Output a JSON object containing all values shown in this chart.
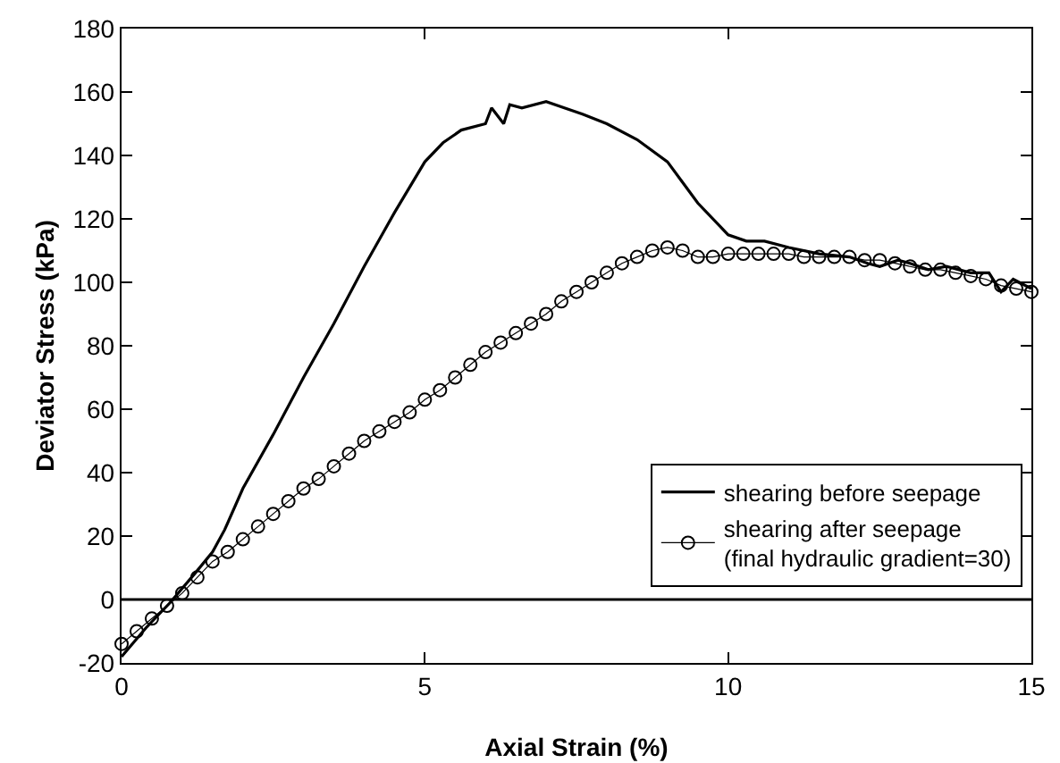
{
  "chart_data": {
    "type": "line",
    "xlabel": "Axial Strain (%)",
    "ylabel": "Deviator Stress (kPa)",
    "xlim": [
      0,
      15
    ],
    "xticks": [
      0,
      5,
      10,
      15
    ],
    "ylim": [
      -20,
      180
    ],
    "yticks": [
      -20,
      0,
      20,
      40,
      60,
      80,
      100,
      120,
      140,
      160,
      180
    ],
    "grid": false,
    "legend": "bottom right",
    "ref_lines": [
      {
        "axis": "y",
        "value": 0,
        "color": "#000000"
      }
    ],
    "series": [
      {
        "name": "shearing before seepage",
        "color": "#000000",
        "marker": "none",
        "line_style": "solid",
        "x": [
          0,
          0.4,
          0.8,
          1.2,
          1.5,
          1.7,
          2,
          2.5,
          3,
          3.5,
          4,
          4.5,
          5,
          5.3,
          5.6,
          6,
          6.1,
          6.3,
          6.4,
          6.6,
          7,
          7.3,
          7.6,
          8,
          8.5,
          9,
          9.5,
          10,
          10.3,
          10.6,
          11,
          11.5,
          12,
          12.3,
          12.5,
          12.8,
          13,
          13.3,
          13.6,
          14,
          14.3,
          14.5,
          14.7,
          15
        ],
        "values": [
          -18,
          -9,
          -1,
          8,
          15,
          22,
          35,
          52,
          70,
          87,
          105,
          122,
          138,
          144,
          148,
          150,
          155,
          150,
          156,
          155,
          157,
          155,
          153,
          150,
          145,
          138,
          125,
          115,
          113,
          113,
          111,
          109,
          108,
          106,
          105,
          107,
          106,
          104,
          105,
          103,
          103,
          97,
          101,
          98
        ]
      },
      {
        "name": "shearing after seepage\n(final hydraulic gradient=30)",
        "color": "#000000",
        "marker": "circle",
        "line_style": "solid",
        "x": [
          0,
          0.25,
          0.5,
          0.75,
          1,
          1.25,
          1.5,
          1.75,
          2,
          2.25,
          2.5,
          2.75,
          3,
          3.25,
          3.5,
          3.75,
          4,
          4.25,
          4.5,
          4.75,
          5,
          5.25,
          5.5,
          5.75,
          6,
          6.25,
          6.5,
          6.75,
          7,
          7.25,
          7.5,
          7.75,
          8,
          8.25,
          8.5,
          8.75,
          9,
          9.25,
          9.5,
          9.75,
          10,
          10.25,
          10.5,
          10.75,
          11,
          11.25,
          11.5,
          11.75,
          12,
          12.25,
          12.5,
          12.75,
          13,
          13.25,
          13.5,
          13.75,
          14,
          14.25,
          14.5,
          14.75,
          15
        ],
        "values": [
          -14,
          -10,
          -6,
          -2,
          2,
          7,
          12,
          15,
          19,
          23,
          27,
          31,
          35,
          38,
          42,
          46,
          50,
          53,
          56,
          59,
          63,
          66,
          70,
          74,
          78,
          81,
          84,
          87,
          90,
          94,
          97,
          100,
          103,
          106,
          108,
          110,
          111,
          110,
          108,
          108,
          109,
          109,
          109,
          109,
          109,
          108,
          108,
          108,
          108,
          107,
          107,
          106,
          105,
          104,
          104,
          103,
          102,
          101,
          99,
          98,
          97
        ]
      }
    ]
  }
}
